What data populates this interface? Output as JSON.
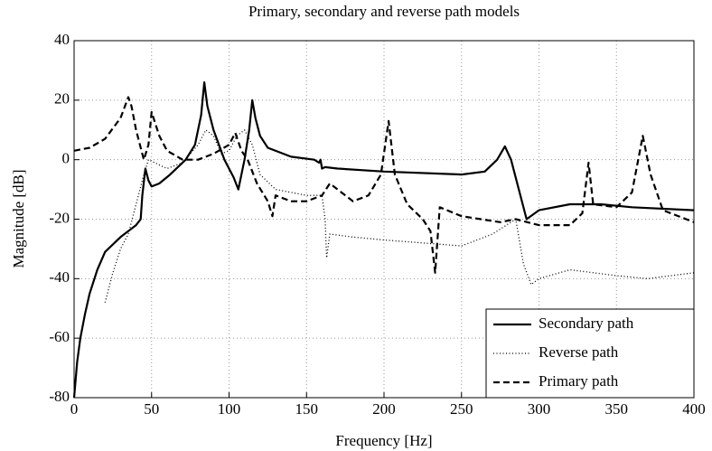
{
  "chart_data": {
    "type": "line",
    "title": "Primary, secondary and reverse path models",
    "xlabel": "Frequency [Hz]",
    "ylabel": "Magnitude [dB]",
    "xlim": [
      0,
      400
    ],
    "ylim": [
      -80,
      40
    ],
    "xticks": [
      0,
      50,
      100,
      150,
      200,
      250,
      300,
      350,
      400
    ],
    "yticks": [
      -80,
      -60,
      -40,
      -20,
      0,
      20,
      40
    ],
    "grid": true,
    "legend": "lower right",
    "series": [
      {
        "name": "Secondary path",
        "color": "#000000",
        "style": "solid",
        "x": [
          0,
          2,
          4,
          7,
          10,
          15,
          20,
          30,
          40,
          43,
          44,
          46,
          48,
          50,
          55,
          62,
          72,
          78,
          82,
          84,
          86,
          90,
          97,
          103,
          106,
          110,
          113,
          115,
          117,
          120,
          125,
          140,
          155,
          158,
          159,
          160,
          162,
          170,
          200,
          250,
          265,
          273,
          278,
          282,
          287,
          292,
          300,
          320,
          340,
          360,
          400
        ],
        "values": [
          -80,
          -68,
          -60,
          -52,
          -45,
          -37,
          -31,
          -26,
          -22,
          -20,
          -12,
          -3,
          -7,
          -9,
          -8,
          -5,
          0,
          5,
          15,
          26,
          18,
          10,
          0,
          -6,
          -10,
          0,
          10,
          20,
          14,
          8,
          4,
          1,
          0,
          -1,
          0,
          -3,
          -2.5,
          -3,
          -4,
          -5,
          -4,
          0,
          4.5,
          0,
          -10,
          -20,
          -17,
          -15,
          -15,
          -16,
          -17
        ]
      },
      {
        "name": "Reverse path",
        "color": "#000000",
        "style": "dotted",
        "x": [
          20,
          25,
          30,
          35,
          40,
          45,
          48,
          52,
          56,
          60,
          70,
          80,
          85,
          90,
          95,
          100,
          105,
          110,
          115,
          120,
          130,
          150,
          160,
          162,
          163,
          165,
          180,
          200,
          250,
          270,
          285,
          290,
          295,
          300,
          320,
          350,
          370,
          400
        ],
        "values": [
          -48,
          -38,
          -30,
          -25,
          -15,
          -5,
          0,
          -1,
          -2,
          -3,
          -1,
          5,
          10,
          8,
          2,
          3,
          8,
          10,
          5,
          -5,
          -10,
          -12,
          -12,
          -20,
          -33,
          -25,
          -26,
          -27,
          -29,
          -25,
          -20,
          -35,
          -42,
          -40,
          -37,
          -39,
          -40,
          -38
        ]
      },
      {
        "name": "Primary path",
        "color": "#000000",
        "style": "dashed",
        "x": [
          0,
          10,
          20,
          30,
          35,
          37,
          40,
          45,
          48,
          50,
          55,
          60,
          70,
          80,
          90,
          100,
          104,
          108,
          112,
          118,
          125,
          128,
          130,
          140,
          150,
          160,
          165,
          170,
          180,
          190,
          198,
          203,
          207,
          215,
          225,
          230,
          233,
          236,
          250,
          275,
          285,
          300,
          320,
          328,
          332,
          335,
          350,
          360,
          367,
          372,
          380,
          400
        ],
        "values": [
          3,
          4,
          7,
          14,
          21,
          18,
          10,
          0,
          5,
          16,
          8,
          3,
          0,
          0,
          2,
          5,
          9,
          3,
          0,
          -8,
          -14,
          -19,
          -12,
          -14,
          -14,
          -12,
          -8,
          -10,
          -14,
          -12,
          -5,
          13,
          -5,
          -15,
          -20,
          -24,
          -38,
          -16,
          -19,
          -21,
          -20,
          -22,
          -22,
          -18,
          -1,
          -15,
          -16,
          -11,
          8,
          -5,
          -17,
          -21
        ]
      }
    ]
  }
}
